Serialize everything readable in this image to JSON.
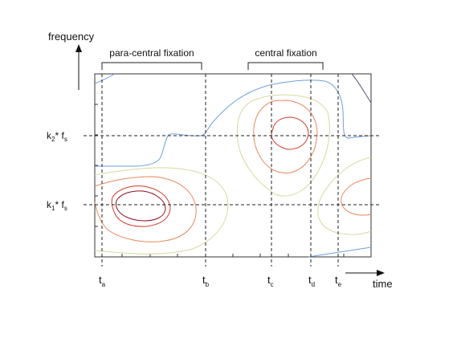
{
  "axes": {
    "y_label": "frequency",
    "x_label": "time"
  },
  "brackets": {
    "para_central": "para-central fixation",
    "central": "central fixation"
  },
  "freq_lines": [
    {
      "k": "k",
      "k_sub": "2",
      "star": "* ",
      "f": "f",
      "f_sub": "s"
    },
    {
      "k": "k",
      "k_sub": "1",
      "star": "* ",
      "f": "f",
      "f_sub": "s"
    }
  ],
  "time_markers": [
    {
      "t": "t",
      "sub": "a"
    },
    {
      "t": "t",
      "sub": "b"
    },
    {
      "t": "t",
      "sub": "c"
    },
    {
      "t": "t",
      "sub": "d"
    },
    {
      "t": "t",
      "sub": "e"
    }
  ],
  "colors": {
    "contour_blue": "#6fa0d8",
    "contour_yellow": "#d8d8a0",
    "contour_orange": "#e8875a",
    "contour_red": "#d03a2a",
    "contour_darkred": "#8a1020",
    "frame": "#333333"
  }
}
